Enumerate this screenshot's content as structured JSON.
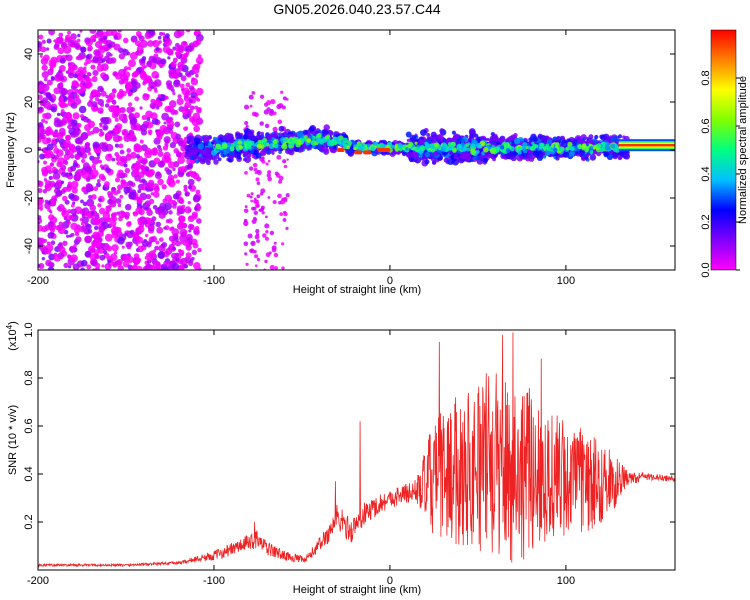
{
  "title": "GN05.2026.040.23.57.C44",
  "chart_data": [
    {
      "type": "heatmap",
      "name": "spectrogram",
      "xlabel": "Height of straight line (km)",
      "ylabel": "Frequency (Hz)",
      "xlim": [
        -200,
        162
      ],
      "ylim": [
        -50,
        50
      ],
      "xticks": [
        "-200",
        "-100",
        "0",
        "100"
      ],
      "xtick_values": [
        -200,
        -100,
        0,
        100
      ],
      "yticks": [
        "-40",
        "-20",
        "0",
        "20",
        "40"
      ],
      "ytick_values": [
        -40,
        -20,
        0,
        20,
        40
      ],
      "colorbar": {
        "label": "Normalized spectral amplitude",
        "range": [
          0,
          1
        ],
        "ticks": [
          "0.0",
          "0.2",
          "0.4",
          "0.6",
          "0.8"
        ],
        "tick_values": [
          0.0,
          0.2,
          0.4,
          0.6,
          0.8
        ],
        "colors": [
          "#ff00ff",
          "#8000ff",
          "#0000ff",
          "#00c0ff",
          "#00ff80",
          "#80ff00",
          "#ffff00",
          "#ff8000",
          "#ff0000"
        ]
      },
      "features": [
        {
          "label": "diffuse noise",
          "x_range": [
            -200,
            -110
          ],
          "f_range": [
            -50,
            50
          ],
          "amplitude": 0.05
        },
        {
          "label": "narrow band",
          "x_range": [
            -110,
            162
          ],
          "f_center": 1,
          "f_halfwidth": 6,
          "amplitude": 0.3
        },
        {
          "label": "strong line",
          "x_range": [
            130,
            162
          ],
          "f_center": 2,
          "amplitude": 0.95
        }
      ]
    },
    {
      "type": "line",
      "name": "snr",
      "xlabel": "Height of straight line (km)",
      "ylabel": "SNR (10 * v/v)",
      "yscale_label": "(x10",
      "yscale_exp": "4",
      "xlim": [
        -200,
        162
      ],
      "ylim": [
        0,
        1.0
      ],
      "xticks": [
        "-200",
        "-100",
        "0",
        "100"
      ],
      "xtick_values": [
        -200,
        -100,
        0,
        100
      ],
      "yticks": [
        "0.2",
        "0.4",
        "0.6",
        "0.8",
        "1.0"
      ],
      "ytick_values": [
        0.2,
        0.4,
        0.6,
        0.8,
        1.0
      ],
      "series": [
        {
          "name": "SNR",
          "color": "#ee2222",
          "x": [
            -200,
            -150,
            -120,
            -100,
            -85,
            -76,
            -70,
            -60,
            -48,
            -35,
            -30,
            -22,
            -15,
            -5,
            5,
            15,
            25,
            40,
            55,
            70,
            85,
            100,
            115,
            130,
            135,
            145,
            162
          ],
          "base": [
            0.02,
            0.02,
            0.03,
            0.06,
            0.1,
            0.13,
            0.09,
            0.06,
            0.04,
            0.15,
            0.22,
            0.16,
            0.23,
            0.28,
            0.31,
            0.33,
            0.38,
            0.42,
            0.45,
            0.42,
            0.4,
            0.38,
            0.36,
            0.37,
            0.38,
            0.39,
            0.38
          ],
          "amp": [
            0.005,
            0.005,
            0.006,
            0.02,
            0.03,
            0.04,
            0.03,
            0.02,
            0.015,
            0.04,
            0.06,
            0.05,
            0.05,
            0.04,
            0.04,
            0.05,
            0.25,
            0.32,
            0.38,
            0.4,
            0.32,
            0.25,
            0.2,
            0.1,
            0.03,
            0.015,
            0.012
          ],
          "peaks": [
            [
              -77,
              0.2
            ],
            [
              -31,
              0.37
            ],
            [
              -17,
              0.62
            ],
            [
              28,
              0.95
            ],
            [
              64,
              0.98
            ],
            [
              70,
              0.99
            ],
            [
              86,
              0.88
            ]
          ]
        }
      ]
    }
  ]
}
